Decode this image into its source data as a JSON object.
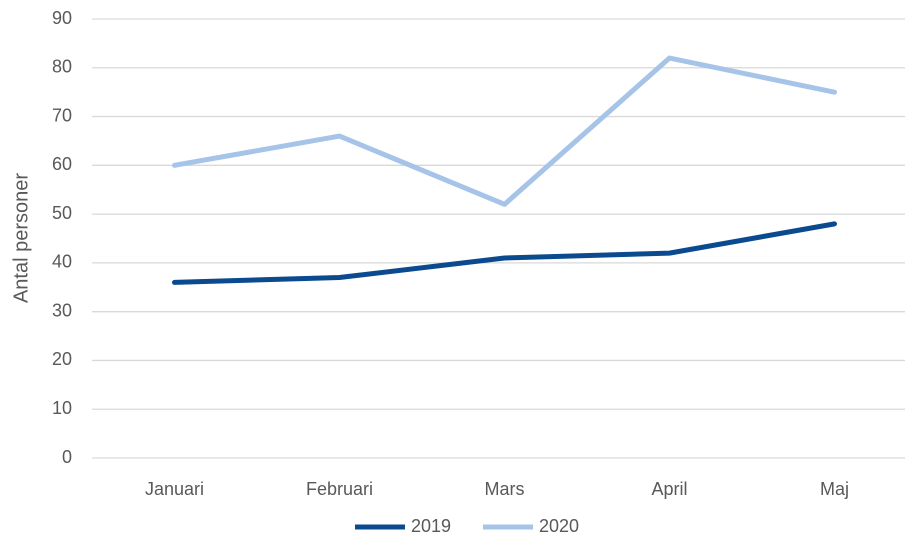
{
  "chart_data": {
    "type": "line",
    "y_label": "Antal personer",
    "categories": [
      "Januari",
      "Februari",
      "Mars",
      "April",
      "Maj"
    ],
    "series": [
      {
        "name": "2019",
        "color": "#0b4a8f",
        "values": [
          36,
          37,
          41,
          42,
          48
        ]
      },
      {
        "name": "2020",
        "color": "#a6c3e8",
        "values": [
          60,
          66,
          52,
          82,
          75
        ]
      }
    ],
    "ylim": [
      0,
      90
    ],
    "yticks": [
      0,
      10,
      20,
      30,
      40,
      50,
      60,
      70,
      80,
      90
    ],
    "grid": true,
    "legend": "bottom"
  }
}
